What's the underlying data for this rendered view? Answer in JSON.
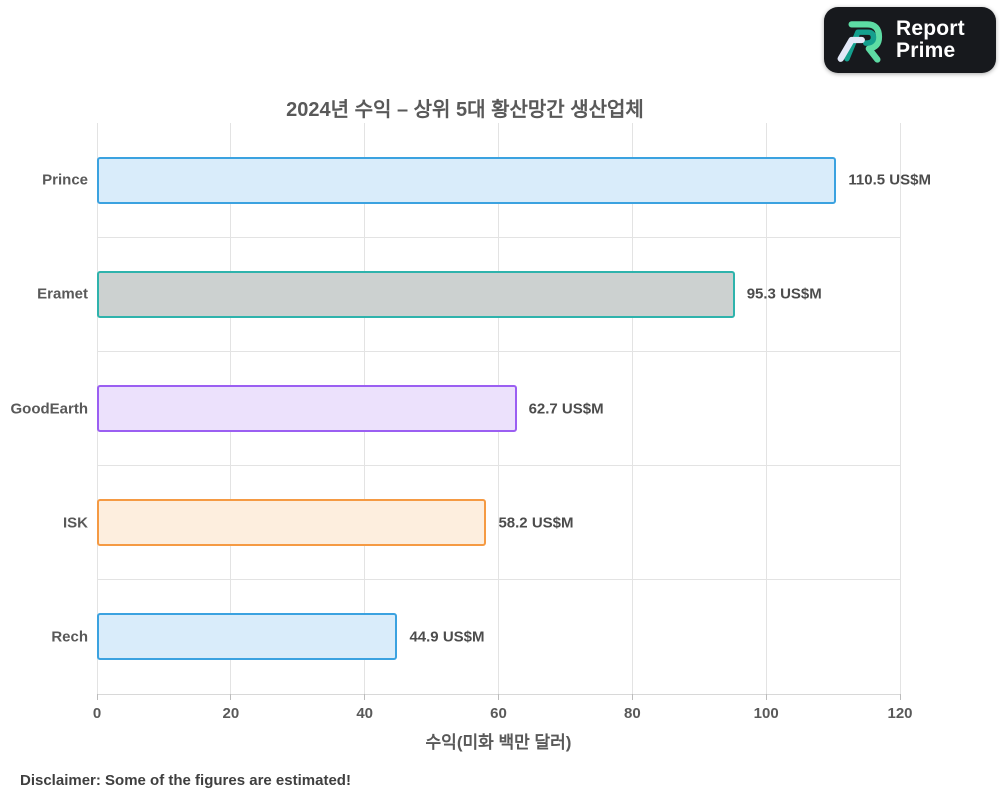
{
  "logo": {
    "brand_line1": "Report",
    "brand_line2": "Prime",
    "bg_color": "#17191d",
    "text_color": "#ffffff",
    "icon_colors": {
      "outer": "#5ddca4",
      "middle": "#14a08e",
      "inner": "#e3e8f7"
    }
  },
  "title": "2024년 수익 – 상위 5대 황산망간 생산업체",
  "disclaimer": "Disclaimer: Some of the figures are estimated!",
  "chart_data": {
    "type": "bar",
    "orientation": "horizontal",
    "title": "2024년 수익 – 상위 5대 황산망간 생산업체",
    "categories": [
      "Prince",
      "Eramet",
      "GoodEarth",
      "ISK",
      "Rech"
    ],
    "values": [
      110.5,
      95.3,
      62.7,
      58.2,
      44.9
    ],
    "value_labels": [
      "110.5 US$M",
      "95.3 US$M",
      "62.7 US$M",
      "58.2 US$M",
      "44.9 US$M"
    ],
    "unit": "US$M",
    "xlabel": "수익(미화 백만 달러)",
    "ylabel": "",
    "xlim": [
      0,
      120
    ],
    "xticks": [
      0,
      20,
      40,
      60,
      80,
      100,
      120
    ],
    "grid": true,
    "legend": false,
    "bar_colors": [
      {
        "fill": "#d9ecfa",
        "border": "#3ba2e0"
      },
      {
        "fill": "#ccd1d0",
        "border": "#2eb3ac"
      },
      {
        "fill": "#ece1fc",
        "border": "#9b5ff2"
      },
      {
        "fill": "#fdeede",
        "border": "#f59a43"
      },
      {
        "fill": "#d9ecfa",
        "border": "#3ba2e0"
      }
    ]
  }
}
